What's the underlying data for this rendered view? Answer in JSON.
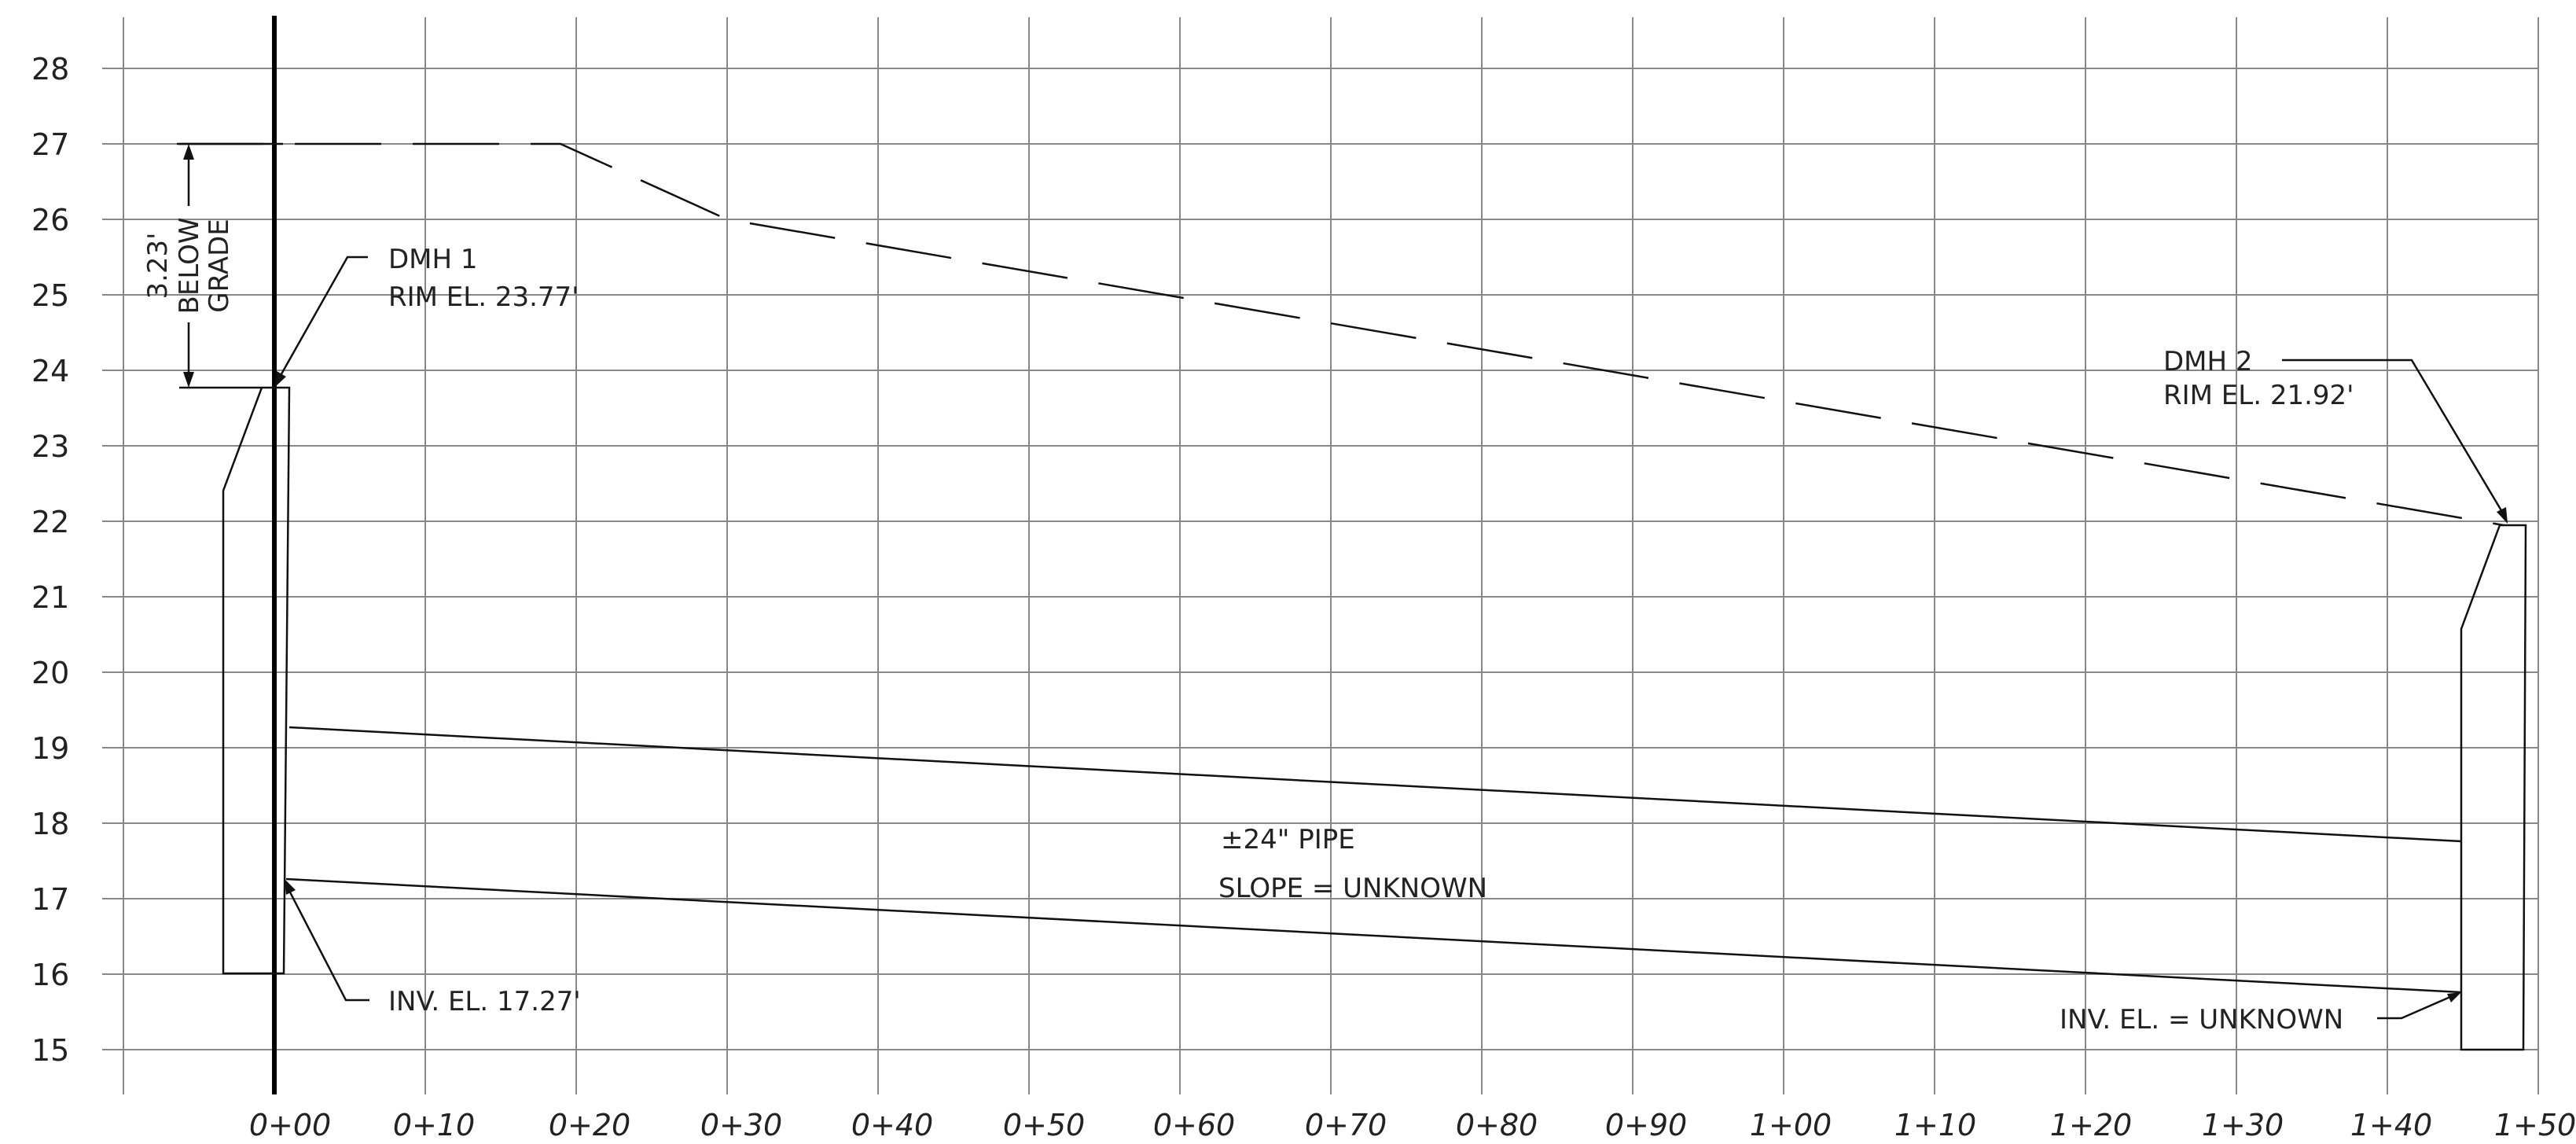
{
  "y_axis": {
    "labels": [
      "28",
      "27",
      "26",
      "25",
      "24",
      "23",
      "22",
      "21",
      "20",
      "19",
      "18",
      "17",
      "16",
      "15"
    ]
  },
  "x_axis": {
    "labels": [
      "0+00",
      "0+10",
      "0+20",
      "0+30",
      "0+40",
      "0+50",
      "0+60",
      "0+70",
      "0+80",
      "0+90",
      "1+00",
      "1+10",
      "1+20",
      "1+30",
      "1+40",
      "1+50"
    ]
  },
  "annotations": {
    "depth_value": "3.23'",
    "depth_line2": "BELOW",
    "depth_line3": "GRADE",
    "dmh1_name": "DMH 1",
    "dmh1_rim": "RIM EL. 23.77'",
    "dmh2_name": "DMH 2",
    "dmh2_rim": "RIM EL. 21.92'",
    "pipe_size": "±24\" PIPE",
    "pipe_slope": "SLOPE = UNKNOWN",
    "inv1": "INV. EL. 17.27'",
    "inv2": "INV. EL. = UNKNOWN"
  },
  "profile_data": {
    "type": "profile",
    "grade": [
      {
        "station": -10,
        "elevation": 27
      },
      {
        "station": 19,
        "elevation": 27
      },
      {
        "station": 30,
        "elevation": 26
      },
      {
        "station": 147,
        "elevation": 21.92
      }
    ],
    "dmh1": {
      "station": 0,
      "rim": 23.77,
      "invert": 17.27
    },
    "dmh2": {
      "station": 147,
      "rim": 21.92
    },
    "pipe": {
      "crown_start": 19.27,
      "crown_end": 17.77,
      "invert_start": 17.27,
      "invert_end": 15.77
    },
    "depth_below_grade": 3.23
  }
}
